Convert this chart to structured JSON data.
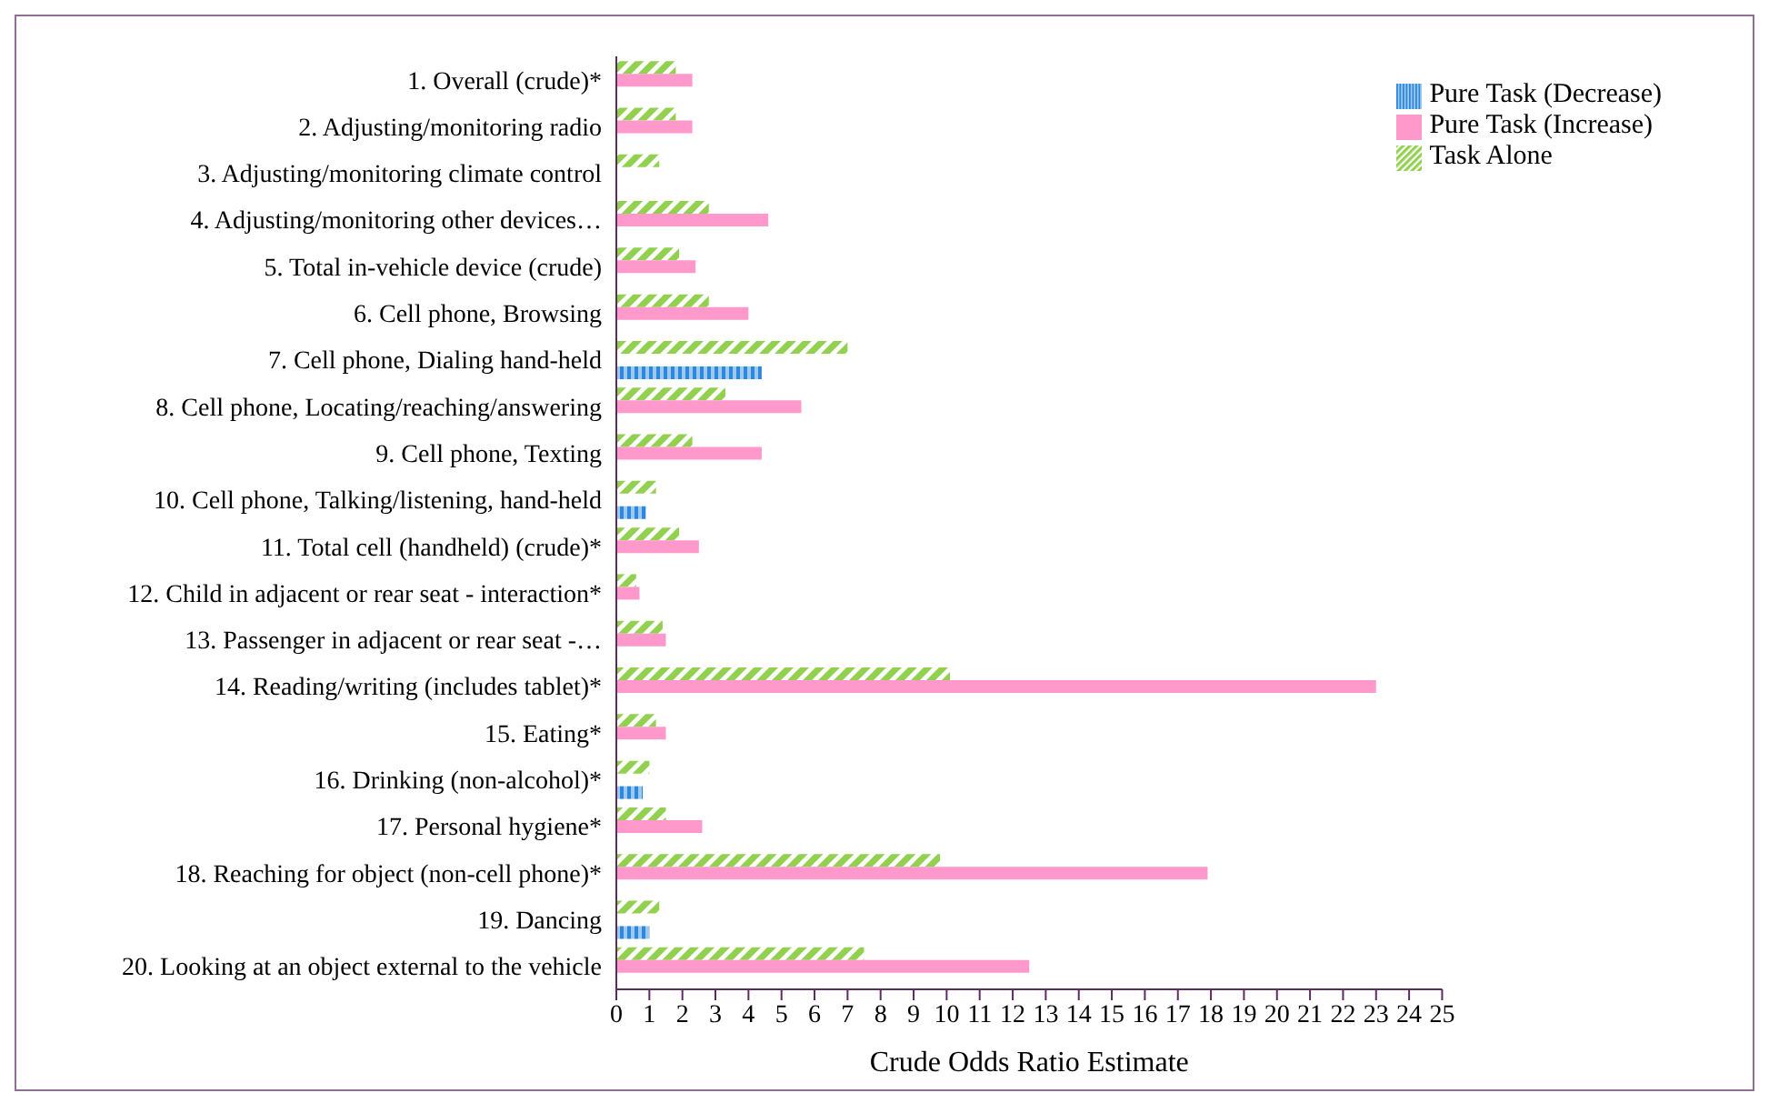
{
  "chart_data": {
    "type": "bar",
    "orientation": "horizontal",
    "xlabel": "Crude Odds Ratio Estimate",
    "categories": [
      "1. Overall (crude)*",
      "2. Adjusting/monitoring radio",
      "3. Adjusting/monitoring climate control",
      "4. Adjusting/monitoring other devices…",
      "5. Total in-vehicle device (crude)",
      "6. Cell phone, Browsing",
      "7. Cell phone, Dialing hand-held",
      "8. Cell phone, Locating/reaching/answering",
      "9. Cell phone, Texting",
      "10. Cell phone, Talking/listening, hand-held",
      "11. Total cell (handheld) (crude)*",
      "12. Child in adjacent or rear seat - interaction*",
      "13. Passenger in adjacent or rear seat -…",
      "14. Reading/writing (includes tablet)*",
      "15. Eating*",
      "16. Drinking (non-alcohol)*",
      "17. Personal hygiene*",
      "18. Reaching for object (non-cell phone)*",
      "19. Dancing",
      "20. Looking at an object external to the vehicle"
    ],
    "series": [
      {
        "name": "Task Alone",
        "color": "#92d050",
        "values": [
          1.8,
          1.8,
          1.3,
          2.8,
          1.9,
          2.8,
          7.0,
          3.3,
          2.3,
          1.2,
          1.9,
          0.6,
          1.4,
          10.1,
          1.2,
          1.0,
          1.5,
          9.8,
          1.3,
          7.5
        ]
      },
      {
        "name": "Pure Task (Increase)",
        "color": "#ff99cc",
        "values": [
          2.3,
          2.3,
          null,
          4.6,
          2.4,
          4.0,
          null,
          5.6,
          4.4,
          null,
          2.5,
          0.7,
          1.5,
          23.0,
          1.5,
          null,
          2.6,
          17.9,
          null,
          12.5
        ]
      },
      {
        "name": "Pure Task (Decrease)",
        "color": "#2e86de",
        "values": [
          null,
          null,
          null,
          null,
          null,
          null,
          4.4,
          null,
          null,
          0.9,
          null,
          null,
          null,
          null,
          null,
          0.8,
          null,
          null,
          1.0,
          null
        ]
      }
    ],
    "xlim": [
      0,
      25
    ],
    "xticks": [
      0,
      1,
      2,
      3,
      4,
      5,
      6,
      7,
      8,
      9,
      10,
      11,
      12,
      13,
      14,
      15,
      16,
      17,
      18,
      19,
      20,
      21,
      22,
      23,
      24,
      25
    ],
    "legend": "top right",
    "grid": false
  }
}
